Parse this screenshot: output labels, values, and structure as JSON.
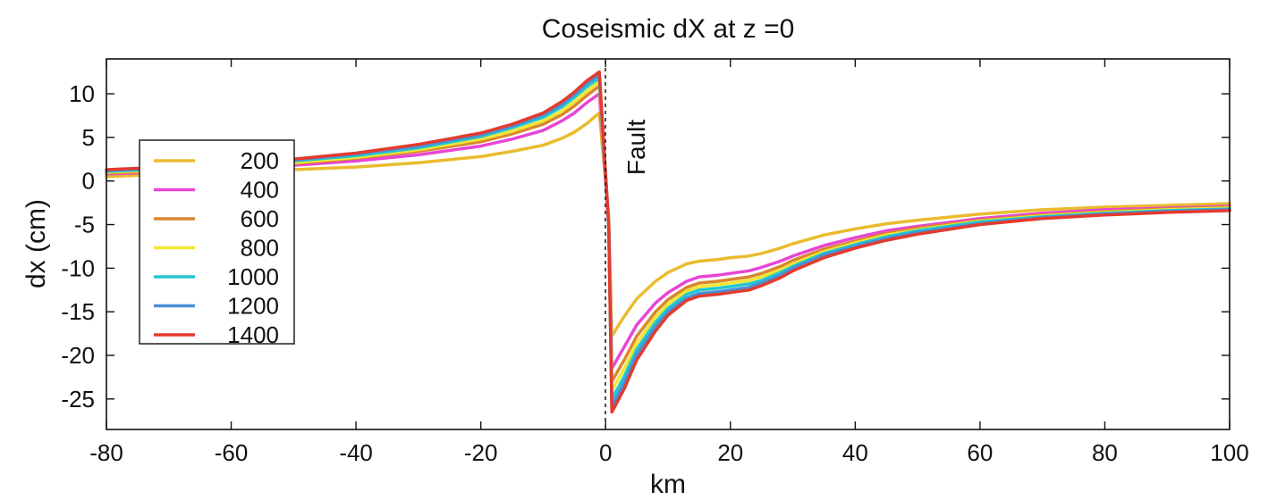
{
  "chart_data": {
    "type": "line",
    "title": "Coseismic dX at z =0",
    "xlabel": "km",
    "ylabel": "dx (cm)",
    "xlim": [
      -80,
      100
    ],
    "ylim": [
      -28.5,
      14
    ],
    "xticks": [
      -80,
      -60,
      -40,
      -20,
      0,
      20,
      40,
      60,
      80,
      100
    ],
    "yticks": [
      10,
      5,
      0,
      -5,
      -10,
      -15,
      -20,
      -25
    ],
    "grid": false,
    "legend_position": "left",
    "annotation": {
      "text": "Fault",
      "x": 0
    },
    "x": [
      -80,
      -70,
      -60,
      -50,
      -40,
      -30,
      -20,
      -15,
      -10,
      -7,
      -5,
      -3,
      -1,
      0.5,
      1,
      3,
      5,
      8,
      10,
      13,
      15,
      18,
      20,
      23,
      25,
      28,
      30,
      35,
      40,
      45,
      50,
      60,
      70,
      80,
      90,
      100
    ],
    "series": [
      {
        "name": "200",
        "color": "#e9bb2e",
        "values": [
          0.5,
          0.8,
          1.0,
          1.3,
          1.6,
          2.1,
          2.8,
          3.4,
          4.1,
          4.9,
          5.6,
          6.6,
          7.8,
          -4,
          -17.8,
          -15.5,
          -13.5,
          -11.5,
          -10.5,
          -9.5,
          -9.2,
          -9.0,
          -8.8,
          -8.6,
          -8.3,
          -7.7,
          -7.2,
          -6.2,
          -5.5,
          -4.9,
          -4.5,
          -3.8,
          -3.3,
          -3.0,
          -2.8,
          -2.6
        ]
      },
      {
        "name": "400",
        "color": "#e845d6",
        "values": [
          0.8,
          1.1,
          1.4,
          1.8,
          2.3,
          3.0,
          4.0,
          4.8,
          5.8,
          6.9,
          7.8,
          9.0,
          10.0,
          -5,
          -21.5,
          -19.0,
          -16.5,
          -14.0,
          -12.8,
          -11.5,
          -11.0,
          -10.8,
          -10.6,
          -10.3,
          -9.9,
          -9.2,
          -8.6,
          -7.4,
          -6.5,
          -5.7,
          -5.2,
          -4.3,
          -3.7,
          -3.3,
          -3.1,
          -2.9
        ]
      },
      {
        "name": "600",
        "color": "#d8872f",
        "values": [
          0.9,
          1.2,
          1.6,
          2.0,
          2.6,
          3.4,
          4.5,
          5.4,
          6.5,
          7.6,
          8.6,
          9.8,
          10.9,
          -5,
          -23.0,
          -20.5,
          -17.8,
          -15.0,
          -13.6,
          -12.2,
          -11.7,
          -11.5,
          -11.3,
          -11.0,
          -10.6,
          -9.8,
          -9.1,
          -7.8,
          -6.9,
          -6.0,
          -5.4,
          -4.5,
          -3.9,
          -3.5,
          -3.2,
          -3.0
        ]
      },
      {
        "name": "800",
        "color": "#f3e633",
        "values": [
          1.0,
          1.3,
          1.7,
          2.1,
          2.7,
          3.6,
          4.8,
          5.7,
          6.9,
          8.0,
          9.1,
          10.3,
          11.4,
          -5,
          -24.0,
          -21.5,
          -18.6,
          -15.6,
          -14.1,
          -12.6,
          -12.1,
          -11.9,
          -11.7,
          -11.4,
          -11.0,
          -10.2,
          -9.5,
          -8.1,
          -7.1,
          -6.2,
          -5.6,
          -4.6,
          -4.0,
          -3.6,
          -3.3,
          -3.1
        ]
      },
      {
        "name": "1000",
        "color": "#23c7cf",
        "values": [
          1.1,
          1.4,
          1.8,
          2.3,
          2.9,
          3.8,
          5.1,
          6.1,
          7.3,
          8.5,
          9.6,
          10.8,
          11.8,
          -5,
          -25.0,
          -22.4,
          -19.3,
          -16.2,
          -14.6,
          -13.0,
          -12.5,
          -12.3,
          -12.1,
          -11.8,
          -11.4,
          -10.5,
          -9.8,
          -8.3,
          -7.3,
          -6.4,
          -5.7,
          -4.7,
          -4.1,
          -3.7,
          -3.4,
          -3.2
        ]
      },
      {
        "name": "1200",
        "color": "#4a8fd6",
        "values": [
          1.2,
          1.5,
          1.9,
          2.4,
          3.1,
          4.0,
          5.3,
          6.3,
          7.6,
          8.8,
          9.9,
          11.2,
          12.2,
          -5,
          -25.8,
          -23.1,
          -19.9,
          -16.7,
          -15.0,
          -13.4,
          -12.9,
          -12.7,
          -12.5,
          -12.2,
          -11.7,
          -10.8,
          -10.0,
          -8.5,
          -7.5,
          -6.6,
          -5.9,
          -4.9,
          -4.2,
          -3.8,
          -3.5,
          -3.3
        ]
      },
      {
        "name": "1400",
        "color": "#e23b2f",
        "values": [
          1.3,
          1.6,
          2.0,
          2.5,
          3.2,
          4.2,
          5.5,
          6.5,
          7.8,
          9.1,
          10.2,
          11.5,
          12.5,
          -5,
          -26.5,
          -23.8,
          -20.5,
          -17.2,
          -15.4,
          -13.7,
          -13.2,
          -13.0,
          -12.8,
          -12.5,
          -12.0,
          -11.1,
          -10.3,
          -8.8,
          -7.7,
          -6.8,
          -6.1,
          -5.0,
          -4.3,
          -3.9,
          -3.6,
          -3.4
        ]
      }
    ]
  }
}
